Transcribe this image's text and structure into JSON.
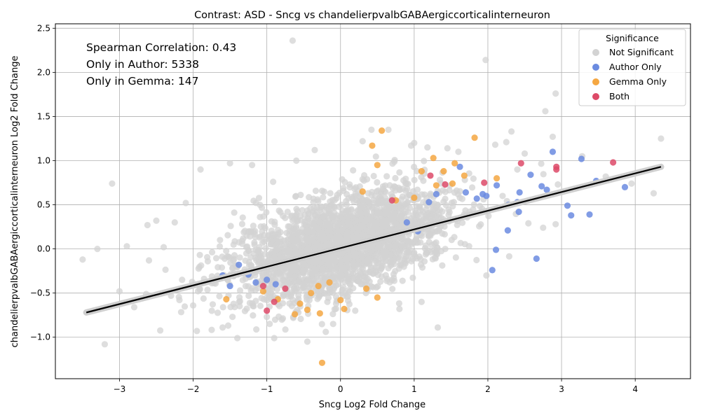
{
  "chart_data": {
    "type": "scatter",
    "title": "Contrast: ASD - Sncg vs chandelierpvalbGABAergiccorticalinterneuron",
    "xlabel": "Sncg Log2 Fold Change",
    "ylabel": "chandelierpvalbGABAergiccorticalinterneuron Log2 Fold Change",
    "xlim": [
      -3.87,
      4.75
    ],
    "ylim": [
      -1.47,
      2.55
    ],
    "xticks": [
      -3,
      -2,
      -1,
      0,
      1,
      2,
      3,
      4
    ],
    "yticks": [
      -1.0,
      -0.5,
      0.0,
      0.5,
      1.0,
      1.5,
      2.0,
      2.5
    ],
    "xtick_labels": [
      "−3",
      "−2",
      "−1",
      "0",
      "1",
      "2",
      "3",
      "4"
    ],
    "ytick_labels": [
      "−1.0",
      "−0.5",
      "0.0",
      "0.5",
      "1.0",
      "1.5",
      "2.0",
      "2.5"
    ],
    "grid": true,
    "annotations": [
      "Spearman Correlation: 0.43",
      "Only in Author: 5338",
      "Only in Gemma: 147"
    ],
    "legend": {
      "title": "Significance",
      "position": "top-right",
      "entries": [
        {
          "label": "Not Significant",
          "color": "#d3d3d3"
        },
        {
          "label": "Author Only",
          "color": "#6b8be0"
        },
        {
          "label": "Gemma Only",
          "color": "#f5a742"
        },
        {
          "label": "Both",
          "color": "#dd4a68"
        }
      ]
    },
    "regression": {
      "x": [
        -3.45,
        4.35
      ],
      "y": [
        -0.72,
        0.93
      ],
      "color": "#000000"
    },
    "series": [
      {
        "name": "Not Significant",
        "color": "#d3d3d3",
        "points": [
          [
            -0.65,
            2.36
          ],
          [
            1.97,
            2.14
          ],
          [
            2.92,
            1.76
          ],
          [
            2.78,
            1.56
          ],
          [
            4.35,
            1.25
          ],
          [
            2.88,
            1.27
          ],
          [
            2.32,
            1.33
          ],
          [
            2.25,
            1.21
          ],
          [
            0.65,
            1.35
          ],
          [
            0.42,
            1.35
          ],
          [
            1.18,
            1.15
          ],
          [
            -0.35,
            1.12
          ],
          [
            3.28,
            1.05
          ],
          [
            2.1,
            1.18
          ],
          [
            -1.9,
            0.9
          ],
          [
            -3.1,
            0.74
          ],
          [
            -3.5,
            -0.12
          ],
          [
            -3.2,
            -1.08
          ],
          [
            -1.4,
            -1.01
          ],
          [
            -0.45,
            -1.05
          ],
          [
            -0.9,
            -1.01
          ],
          [
            1.32,
            -0.89
          ],
          [
            -0.1,
            -0.85
          ],
          [
            -1.95,
            -0.93
          ],
          [
            -2.8,
            -0.66
          ],
          [
            -3.0,
            -0.48
          ],
          [
            4.25,
            0.63
          ],
          [
            3.95,
            0.74
          ],
          [
            3.6,
            0.82
          ],
          [
            2.95,
            0.73
          ],
          [
            2.75,
            0.24
          ],
          [
            2.92,
            0.28
          ],
          [
            2.55,
            0.29
          ],
          [
            -2.1,
            0.52
          ],
          [
            -2.5,
            0.32
          ],
          [
            -1.0,
            -0.77
          ],
          [
            0.8,
            -0.68
          ],
          [
            1.1,
            -0.6
          ],
          [
            -2.62,
            0.27
          ],
          [
            -2.25,
            0.3
          ],
          [
            -2.4,
            0.02
          ],
          [
            -2.9,
            0.03
          ],
          [
            -3.3,
            0.0
          ],
          [
            -2.15,
            -0.35
          ],
          [
            -2.0,
            -0.64
          ],
          [
            -2.3,
            -0.53
          ],
          [
            -2.6,
            -0.13
          ],
          [
            -1.6,
            -0.89
          ],
          [
            1.98,
            -0.3
          ],
          [
            2.2,
            0.6
          ],
          [
            2.4,
            0.9
          ],
          [
            2.5,
            1.08
          ],
          [
            1.6,
            1.1
          ],
          [
            1.0,
            1.2
          ],
          [
            0.3,
            1.22
          ],
          [
            -0.6,
            1.0
          ],
          [
            -1.2,
            0.95
          ],
          [
            -1.5,
            0.97
          ],
          [
            -0.2,
            -0.94
          ],
          [
            0.2,
            -0.7
          ]
        ]
      },
      {
        "name": "Author Only",
        "color": "#6b8be0",
        "points": [
          [
            2.88,
            1.1
          ],
          [
            3.27,
            1.02
          ],
          [
            2.58,
            0.84
          ],
          [
            2.73,
            0.71
          ],
          [
            2.8,
            0.67
          ],
          [
            3.47,
            0.77
          ],
          [
            3.86,
            0.7
          ],
          [
            3.08,
            0.49
          ],
          [
            3.13,
            0.38
          ],
          [
            3.38,
            0.39
          ],
          [
            2.43,
            0.64
          ],
          [
            2.4,
            0.53
          ],
          [
            2.28,
            0.5
          ],
          [
            2.42,
            0.42
          ],
          [
            2.27,
            0.21
          ],
          [
            2.11,
            -0.01
          ],
          [
            2.06,
            -0.24
          ],
          [
            2.66,
            -0.11
          ],
          [
            2.12,
            0.72
          ],
          [
            1.62,
            0.93
          ],
          [
            1.7,
            0.64
          ],
          [
            1.93,
            0.62
          ],
          [
            1.98,
            0.6
          ],
          [
            1.85,
            0.57
          ],
          [
            1.3,
            0.62
          ],
          [
            1.2,
            0.53
          ],
          [
            1.05,
            0.2
          ],
          [
            0.9,
            0.3
          ],
          [
            -1.6,
            -0.3
          ],
          [
            -1.38,
            -0.18
          ],
          [
            -1.25,
            -0.29
          ],
          [
            -1.0,
            -0.35
          ],
          [
            -0.88,
            -0.4
          ],
          [
            -1.5,
            -0.42
          ],
          [
            -1.15,
            -0.38
          ]
        ]
      },
      {
        "name": "Gemma Only",
        "color": "#f5a742",
        "points": [
          [
            1.82,
            1.26
          ],
          [
            0.56,
            1.34
          ],
          [
            0.43,
            1.17
          ],
          [
            1.26,
            1.03
          ],
          [
            0.5,
            0.95
          ],
          [
            1.55,
            0.97
          ],
          [
            1.4,
            0.88
          ],
          [
            1.1,
            0.88
          ],
          [
            2.12,
            0.8
          ],
          [
            1.68,
            0.83
          ],
          [
            1.52,
            0.74
          ],
          [
            1.3,
            0.72
          ],
          [
            1.0,
            0.58
          ],
          [
            0.75,
            0.55
          ],
          [
            0.3,
            0.65
          ],
          [
            -0.25,
            -1.29
          ],
          [
            0.05,
            -0.68
          ],
          [
            -0.28,
            -0.73
          ],
          [
            -0.62,
            -0.74
          ],
          [
            -0.55,
            -0.62
          ],
          [
            -0.45,
            -0.69
          ],
          [
            -0.85,
            -0.57
          ],
          [
            -0.4,
            -0.5
          ],
          [
            -0.3,
            -0.42
          ],
          [
            -0.15,
            -0.38
          ],
          [
            0.0,
            -0.58
          ],
          [
            0.5,
            -0.55
          ],
          [
            0.35,
            -0.45
          ],
          [
            -1.55,
            -0.57
          ],
          [
            -1.05,
            -0.48
          ]
        ]
      },
      {
        "name": "Both",
        "color": "#dd4a68",
        "points": [
          [
            3.7,
            0.98
          ],
          [
            2.93,
            0.93
          ],
          [
            2.93,
            0.9
          ],
          [
            2.45,
            0.97
          ],
          [
            1.95,
            0.75
          ],
          [
            1.42,
            0.73
          ],
          [
            1.22,
            0.83
          ],
          [
            0.7,
            0.55
          ],
          [
            -1.0,
            -0.7
          ],
          [
            -0.75,
            -0.45
          ],
          [
            -1.05,
            -0.42
          ],
          [
            -0.9,
            -0.6
          ]
        ]
      }
    ]
  }
}
